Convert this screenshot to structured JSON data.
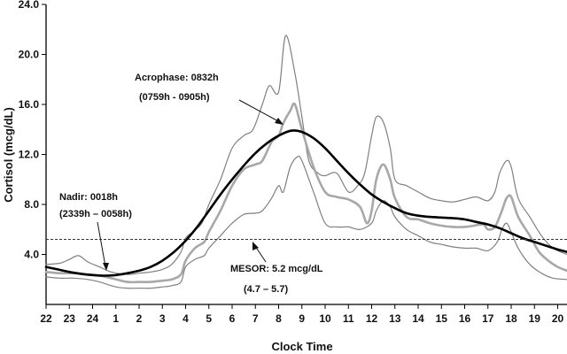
{
  "chart_data": {
    "type": "line",
    "xlabel": "Clock Time",
    "ylabel": "Cortisol (mcg/dL)",
    "xlim": [
      22,
      44.4
    ],
    "ylim": [
      0,
      24
    ],
    "x_tick_values": [
      22,
      23,
      24,
      25,
      26,
      27,
      28,
      29,
      30,
      31,
      32,
      33,
      34,
      35,
      36,
      37,
      38,
      39,
      40,
      41,
      42,
      43,
      44
    ],
    "x_tick_labels": [
      "22",
      "23",
      "24",
      "1",
      "2",
      "3",
      "4",
      "5",
      "6",
      "7",
      "8",
      "9",
      "10",
      "11",
      "12",
      "13",
      "14",
      "15",
      "16",
      "17",
      "18",
      "19",
      "20"
    ],
    "y_ticks": [
      4,
      8,
      12,
      16,
      20,
      24
    ],
    "y_tick_labels": [
      "4.0",
      "8.0",
      "12.0",
      "16.0",
      "20.0",
      "24.0"
    ],
    "colors": {
      "fit": "#000000",
      "mean": "#a8a8a8",
      "bounds": "#808080",
      "mesor": "#333333"
    },
    "series": [
      {
        "key": "upper",
        "x": [
          22,
          22.6,
          23,
          23.4,
          23.8,
          24.3,
          24.8,
          25.5,
          26,
          26.5,
          27,
          27.4,
          27.8,
          28,
          28.3,
          28.7,
          29,
          29.5,
          30,
          30.5,
          30.9,
          31.3,
          31.6,
          32,
          32.3,
          32.7,
          33,
          33.3,
          33.7,
          34,
          34.5,
          35,
          35.4,
          35.7,
          36,
          36.2,
          36.5,
          36.8,
          37,
          37.5,
          38,
          38.5,
          39,
          39.5,
          40,
          40.5,
          41,
          41.3,
          41.5,
          41.8,
          42,
          42.3,
          42.8,
          43.3,
          43.8,
          44.4
        ],
        "y": [
          3.2,
          3.3,
          3.6,
          3.9,
          3.4,
          3.0,
          2.6,
          2.4,
          2.5,
          2.6,
          2.8,
          3.2,
          4.2,
          5.3,
          5.8,
          6.5,
          8.0,
          10.0,
          12.5,
          13.5,
          14.0,
          16.0,
          17.5,
          17.0,
          21.5,
          18.5,
          15.0,
          11.5,
          10.5,
          10.3,
          10.5,
          9.0,
          9.5,
          10.5,
          13.5,
          15.0,
          14.6,
          12.5,
          10.0,
          9.5,
          9.0,
          8.5,
          8.3,
          8.2,
          8.4,
          8.6,
          8.3,
          9.0,
          10.5,
          11.5,
          11.0,
          8.5,
          7.0,
          5.5,
          4.5,
          4.0
        ]
      },
      {
        "key": "mean",
        "x": [
          22,
          22.6,
          23.2,
          23.8,
          24.3,
          24.8,
          25.5,
          26,
          26.5,
          27,
          27.4,
          27.8,
          28,
          28.4,
          28.8,
          29,
          29.5,
          30,
          30.5,
          31,
          31.3,
          31.7,
          32,
          32.2,
          32.5,
          32.7,
          33,
          33.5,
          34,
          34.5,
          35,
          35.5,
          35.8,
          36,
          36.2,
          36.5,
          36.8,
          37,
          37.5,
          38,
          38.5,
          39,
          39.5,
          40,
          40.4,
          40.8,
          41,
          41.3,
          41.6,
          41.8,
          42,
          42.3,
          42.8,
          43.2,
          43.6,
          44,
          44.4
        ],
        "y": [
          2.6,
          2.5,
          2.5,
          2.4,
          2.3,
          2.1,
          1.8,
          1.8,
          1.8,
          1.9,
          2.0,
          2.4,
          3.5,
          4.5,
          5.0,
          5.8,
          7.5,
          9.5,
          10.8,
          11.2,
          11.5,
          13.0,
          13.5,
          14.5,
          15.5,
          16.0,
          14.0,
          11.0,
          9.0,
          8.6,
          8.4,
          7.8,
          6.5,
          7.5,
          10.0,
          11.2,
          10.0,
          8.5,
          7.0,
          6.8,
          6.5,
          6.3,
          6.2,
          6.2,
          6.3,
          6.4,
          6.0,
          6.2,
          7.5,
          8.5,
          8.6,
          7.0,
          5.5,
          4.2,
          3.5,
          3.0,
          2.7
        ]
      },
      {
        "key": "lower",
        "x": [
          22,
          22.6,
          23.2,
          23.8,
          24.3,
          25,
          25.5,
          26,
          26.5,
          27,
          27.4,
          27.8,
          28,
          28.4,
          28.8,
          29,
          29.5,
          30,
          30.5,
          31,
          31.3,
          31.7,
          32,
          32.2,
          32.5,
          32.8,
          33,
          33.5,
          34,
          34.5,
          35,
          35.5,
          36,
          36.2,
          36.5,
          36.8,
          37,
          37.5,
          38,
          38.5,
          39,
          39.5,
          40,
          40.5,
          41,
          41.4,
          41.6,
          41.8,
          42,
          42.3,
          42.8,
          43.3,
          43.8,
          44.4
        ],
        "y": [
          2.2,
          2.1,
          2.1,
          2.0,
          1.8,
          1.4,
          1.3,
          1.3,
          1.3,
          1.4,
          1.5,
          1.8,
          3.0,
          3.6,
          3.9,
          4.5,
          5.5,
          6.5,
          7.2,
          7.3,
          7.5,
          8.5,
          9.5,
          9.0,
          11.0,
          11.8,
          11.5,
          9.0,
          6.5,
          6.2,
          6.2,
          6.0,
          6.5,
          7.5,
          8.3,
          7.8,
          7.0,
          6.0,
          5.5,
          5.0,
          4.8,
          4.6,
          4.5,
          4.5,
          4.3,
          5.0,
          6.0,
          6.5,
          5.8,
          4.5,
          3.2,
          2.5,
          2.1,
          2.0
        ]
      },
      {
        "key": "fit",
        "x": [
          22,
          22.5,
          23,
          23.5,
          24,
          24.5,
          25,
          25.5,
          26,
          26.5,
          27,
          27.5,
          28,
          28.5,
          29,
          29.5,
          30,
          30.5,
          31,
          31.5,
          32,
          32.53,
          33,
          33.5,
          34,
          34.5,
          35,
          35.5,
          36,
          36.5,
          37,
          37.5,
          38,
          38.5,
          39,
          39.5,
          40,
          40.5,
          41,
          41.5,
          42,
          42.5,
          43,
          43.5,
          44,
          44.4
        ],
        "y": [
          3.0,
          2.8,
          2.6,
          2.45,
          2.35,
          2.3,
          2.35,
          2.5,
          2.7,
          3.0,
          3.5,
          4.2,
          5.1,
          6.2,
          7.5,
          8.8,
          10.0,
          11.1,
          12.1,
          12.9,
          13.5,
          13.9,
          13.8,
          13.3,
          12.5,
          11.5,
          10.5,
          9.6,
          8.8,
          8.2,
          7.7,
          7.3,
          7.1,
          7.0,
          6.95,
          6.9,
          6.8,
          6.6,
          6.4,
          6.1,
          5.7,
          5.3,
          5.0,
          4.7,
          4.4,
          4.2
        ]
      }
    ],
    "mesor_line": 5.2,
    "annotations": {
      "acrophase_title": "Acrophase: 0832h",
      "acrophase_range": "(0759h - 0905h)",
      "acrophase_at": [
        32.53,
        13.9
      ],
      "nadir_title": "Nadir: 0018h",
      "nadir_range": "(2339h – 0058h)",
      "nadir_at": [
        24.3,
        2.3
      ],
      "mesor_title": "MESOR: 5.2 mcg/dL",
      "mesor_range": "(4.7 –   5.7)",
      "mesor_at": [
        31.2,
        5.2
      ]
    }
  }
}
